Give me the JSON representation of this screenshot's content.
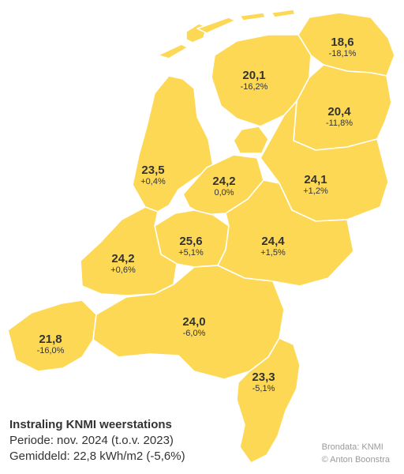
{
  "fill_color": "#fdd855",
  "caption": {
    "title": "Instraling KNMI weerstations",
    "period": "Periode: nov. 2024 (t.o.v. 2023)",
    "average": "Gemiddeld: 22,8 kWh/m2 (-5,6%)"
  },
  "source": {
    "data": "Brondata: KNMI",
    "author": "© Anton Boonstra"
  },
  "regions": [
    {
      "id": "groningen",
      "value": "18,6",
      "change": "-18,1%"
    },
    {
      "id": "friesland",
      "value": "20,1",
      "change": "-16,2%"
    },
    {
      "id": "drenthe",
      "value": "20,4",
      "change": "-11,8%"
    },
    {
      "id": "noord-holland",
      "value": "23,5",
      "change": "+0,4%"
    },
    {
      "id": "flevoland",
      "value": "24,2",
      "change": "0,0%"
    },
    {
      "id": "overijssel",
      "value": "24,1",
      "change": "+1,2%"
    },
    {
      "id": "utrecht",
      "value": "25,6",
      "change": "+5,1%"
    },
    {
      "id": "gelderland",
      "value": "24,4",
      "change": "+1,5%"
    },
    {
      "id": "zuid-holland",
      "value": "24,2",
      "change": "+0,6%"
    },
    {
      "id": "zeeland",
      "value": "21,8",
      "change": "-16,0%"
    },
    {
      "id": "noord-brabant",
      "value": "24,0",
      "change": "-6,0%"
    },
    {
      "id": "limburg",
      "value": "23,3",
      "change": "-5,1%"
    }
  ]
}
